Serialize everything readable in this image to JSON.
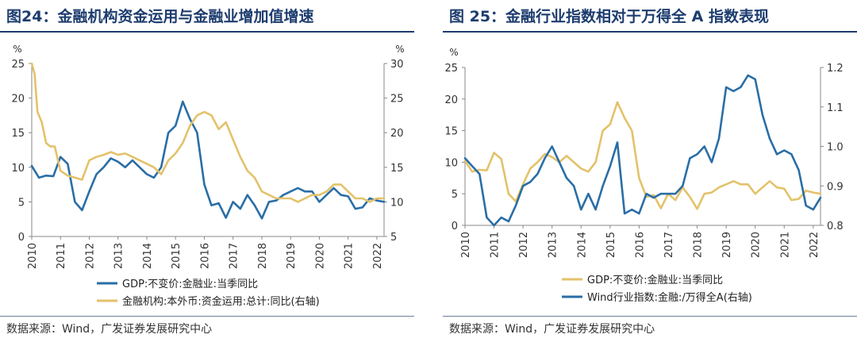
{
  "colors": {
    "blue": "#2a6ea6",
    "yellow": "#e3c26a",
    "axis": "#888888",
    "title": "#1d3c6e"
  },
  "left": {
    "title": "图24：金融机构资金运用与金融业增加值增速",
    "source": "数据来源：Wind，广发证券发展研究中心"
  },
  "right": {
    "title": "图 25：金融行业指数相对于万得全 A 指数表现",
    "source": "数据来源：Wind，广发证券发展研究中心"
  },
  "chart_data": [
    {
      "type": "line",
      "title": "图24：金融机构资金运用与金融业增加值增速",
      "x_categories": [
        "2010",
        "2011",
        "2012",
        "2013",
        "2014",
        "2015",
        "2016",
        "2017",
        "2018",
        "2019",
        "2020",
        "2021",
        "2022"
      ],
      "y_left": {
        "unit": "%",
        "range": [
          0,
          25
        ],
        "ticks": [
          0,
          5,
          10,
          15,
          20,
          25
        ]
      },
      "y_right": {
        "unit": "%",
        "range": [
          5,
          30
        ],
        "ticks": [
          5,
          10,
          15,
          20,
          25,
          30
        ]
      },
      "series": [
        {
          "name": "GDP:不变价:金融业:当季同比",
          "axis": "left",
          "color": "#2a6ea6",
          "x": [
            2010.0,
            2010.25,
            2010.5,
            2010.75,
            2011.0,
            2011.25,
            2011.5,
            2011.75,
            2012.0,
            2012.25,
            2012.5,
            2012.75,
            2013.0,
            2013.25,
            2013.5,
            2013.75,
            2014.0,
            2014.25,
            2014.5,
            2014.75,
            2015.0,
            2015.25,
            2015.5,
            2015.75,
            2016.0,
            2016.25,
            2016.5,
            2016.75,
            2017.0,
            2017.25,
            2017.5,
            2017.75,
            2018.0,
            2018.25,
            2018.5,
            2018.75,
            2019.0,
            2019.25,
            2019.5,
            2019.75,
            2020.0,
            2020.25,
            2020.5,
            2020.75,
            2021.0,
            2021.25,
            2021.5,
            2021.75,
            2022.0,
            2022.25
          ],
          "y": [
            10.2,
            8.5,
            8.8,
            8.7,
            11.5,
            10.5,
            5.0,
            3.8,
            6.5,
            9.0,
            10.0,
            11.3,
            10.8,
            10.0,
            11.0,
            10.0,
            9.0,
            8.5,
            10.0,
            15.0,
            16.0,
            19.5,
            17.0,
            15.0,
            7.5,
            4.5,
            4.8,
            2.7,
            5.0,
            4.0,
            6.0,
            4.5,
            2.6,
            5.0,
            5.2,
            6.0,
            6.5,
            7.0,
            6.5,
            6.5,
            5.0,
            6.0,
            7.0,
            6.0,
            5.8,
            4.0,
            4.2,
            5.5,
            5.2,
            5.0
          ]
        },
        {
          "name": "金融机构:本外币:资金运用:总计:同比(右轴)",
          "axis": "right",
          "color": "#e3c26a",
          "x": [
            2010.0,
            2010.1,
            2010.2,
            2010.35,
            2010.5,
            2010.65,
            2010.8,
            2011.0,
            2011.25,
            2011.5,
            2011.75,
            2012.0,
            2012.25,
            2012.5,
            2012.75,
            2013.0,
            2013.25,
            2013.5,
            2013.75,
            2014.0,
            2014.25,
            2014.5,
            2014.75,
            2015.0,
            2015.25,
            2015.5,
            2015.75,
            2016.0,
            2016.25,
            2016.5,
            2016.75,
            2017.0,
            2017.25,
            2017.5,
            2017.75,
            2018.0,
            2018.25,
            2018.5,
            2018.75,
            2019.0,
            2019.25,
            2019.5,
            2019.75,
            2020.0,
            2020.25,
            2020.5,
            2020.75,
            2021.0,
            2021.25,
            2021.5,
            2021.75,
            2022.0,
            2022.25
          ],
          "y": [
            30.0,
            28.5,
            23.0,
            21.5,
            18.5,
            18.0,
            18.0,
            14.5,
            13.8,
            13.5,
            13.2,
            16.0,
            16.5,
            16.8,
            17.2,
            16.8,
            17.0,
            16.5,
            16.0,
            15.5,
            15.0,
            14.0,
            16.0,
            17.0,
            18.5,
            21.0,
            22.5,
            23.0,
            22.5,
            20.5,
            21.5,
            19.0,
            16.5,
            14.5,
            13.5,
            11.5,
            11.0,
            10.5,
            10.5,
            10.5,
            10.0,
            10.5,
            11.0,
            11.0,
            11.5,
            12.5,
            12.5,
            11.5,
            10.5,
            10.5,
            10.0,
            10.5,
            10.5
          ]
        }
      ]
    },
    {
      "type": "line",
      "title": "图 25：金融行业指数相对于万得全 A 指数表现",
      "x_categories": [
        "2010",
        "2011",
        "2012",
        "2013",
        "2014",
        "2015",
        "2016",
        "2017",
        "2018",
        "2019",
        "2020",
        "2021",
        "2022"
      ],
      "y_left": {
        "unit": "%",
        "range": [
          0,
          25
        ],
        "ticks": [
          0,
          5,
          10,
          15,
          20,
          25
        ]
      },
      "y_right": {
        "unit": "",
        "range": [
          0.8,
          1.2
        ],
        "ticks": [
          0.8,
          0.9,
          1.0,
          1.1,
          1.2
        ]
      },
      "series": [
        {
          "name": "GDP:不变价:金融业:当季同比",
          "axis": "left",
          "color": "#e3c26a",
          "x": [
            2010.0,
            2010.25,
            2010.5,
            2010.75,
            2011.0,
            2011.25,
            2011.5,
            2011.75,
            2012.0,
            2012.25,
            2012.5,
            2012.75,
            2013.0,
            2013.25,
            2013.5,
            2013.75,
            2014.0,
            2014.25,
            2014.5,
            2014.75,
            2015.0,
            2015.25,
            2015.5,
            2015.75,
            2016.0,
            2016.25,
            2016.5,
            2016.75,
            2017.0,
            2017.25,
            2017.5,
            2017.75,
            2018.0,
            2018.25,
            2018.5,
            2018.75,
            2019.0,
            2019.25,
            2019.5,
            2019.75,
            2020.0,
            2020.25,
            2020.5,
            2020.75,
            2021.0,
            2021.25,
            2021.5,
            2021.75,
            2022.0,
            2022.25
          ],
          "y": [
            10.2,
            8.5,
            8.8,
            8.7,
            11.5,
            10.5,
            5.0,
            3.8,
            6.5,
            9.0,
            10.0,
            11.3,
            10.8,
            10.0,
            11.0,
            10.0,
            9.0,
            8.5,
            10.0,
            15.0,
            16.0,
            19.5,
            17.0,
            15.0,
            7.5,
            4.5,
            4.8,
            2.7,
            5.0,
            4.0,
            6.0,
            4.5,
            2.6,
            5.0,
            5.2,
            6.0,
            6.5,
            7.0,
            6.5,
            6.5,
            5.0,
            6.0,
            7.0,
            6.0,
            5.8,
            4.0,
            4.2,
            5.5,
            5.2,
            5.0
          ]
        },
        {
          "name": "Wind行业指数:金融:/万得全A(右轴)",
          "axis": "right",
          "color": "#2a6ea6",
          "x": [
            2010.0,
            2010.25,
            2010.5,
            2010.75,
            2011.0,
            2011.25,
            2011.5,
            2011.75,
            2012.0,
            2012.25,
            2012.5,
            2012.75,
            2013.0,
            2013.25,
            2013.5,
            2013.75,
            2014.0,
            2014.25,
            2014.5,
            2014.75,
            2015.0,
            2015.25,
            2015.5,
            2015.75,
            2016.0,
            2016.25,
            2016.5,
            2016.75,
            2017.0,
            2017.25,
            2017.5,
            2017.75,
            2018.0,
            2018.25,
            2018.5,
            2018.75,
            2019.0,
            2019.25,
            2019.5,
            2019.75,
            2020.0,
            2020.25,
            2020.5,
            2020.75,
            2021.0,
            2021.25,
            2021.5,
            2021.75,
            2022.0,
            2022.25
          ],
          "y": [
            0.97,
            0.95,
            0.93,
            0.82,
            0.8,
            0.82,
            0.81,
            0.85,
            0.9,
            0.91,
            0.93,
            0.97,
            1.0,
            0.96,
            0.92,
            0.9,
            0.84,
            0.88,
            0.84,
            0.9,
            0.95,
            1.01,
            0.83,
            0.84,
            0.83,
            0.88,
            0.87,
            0.88,
            0.88,
            0.88,
            0.9,
            0.97,
            0.98,
            1.0,
            0.96,
            1.02,
            1.15,
            1.14,
            1.15,
            1.18,
            1.17,
            1.08,
            1.02,
            0.98,
            0.99,
            0.98,
            0.94,
            0.85,
            0.84,
            0.87
          ]
        }
      ]
    }
  ]
}
